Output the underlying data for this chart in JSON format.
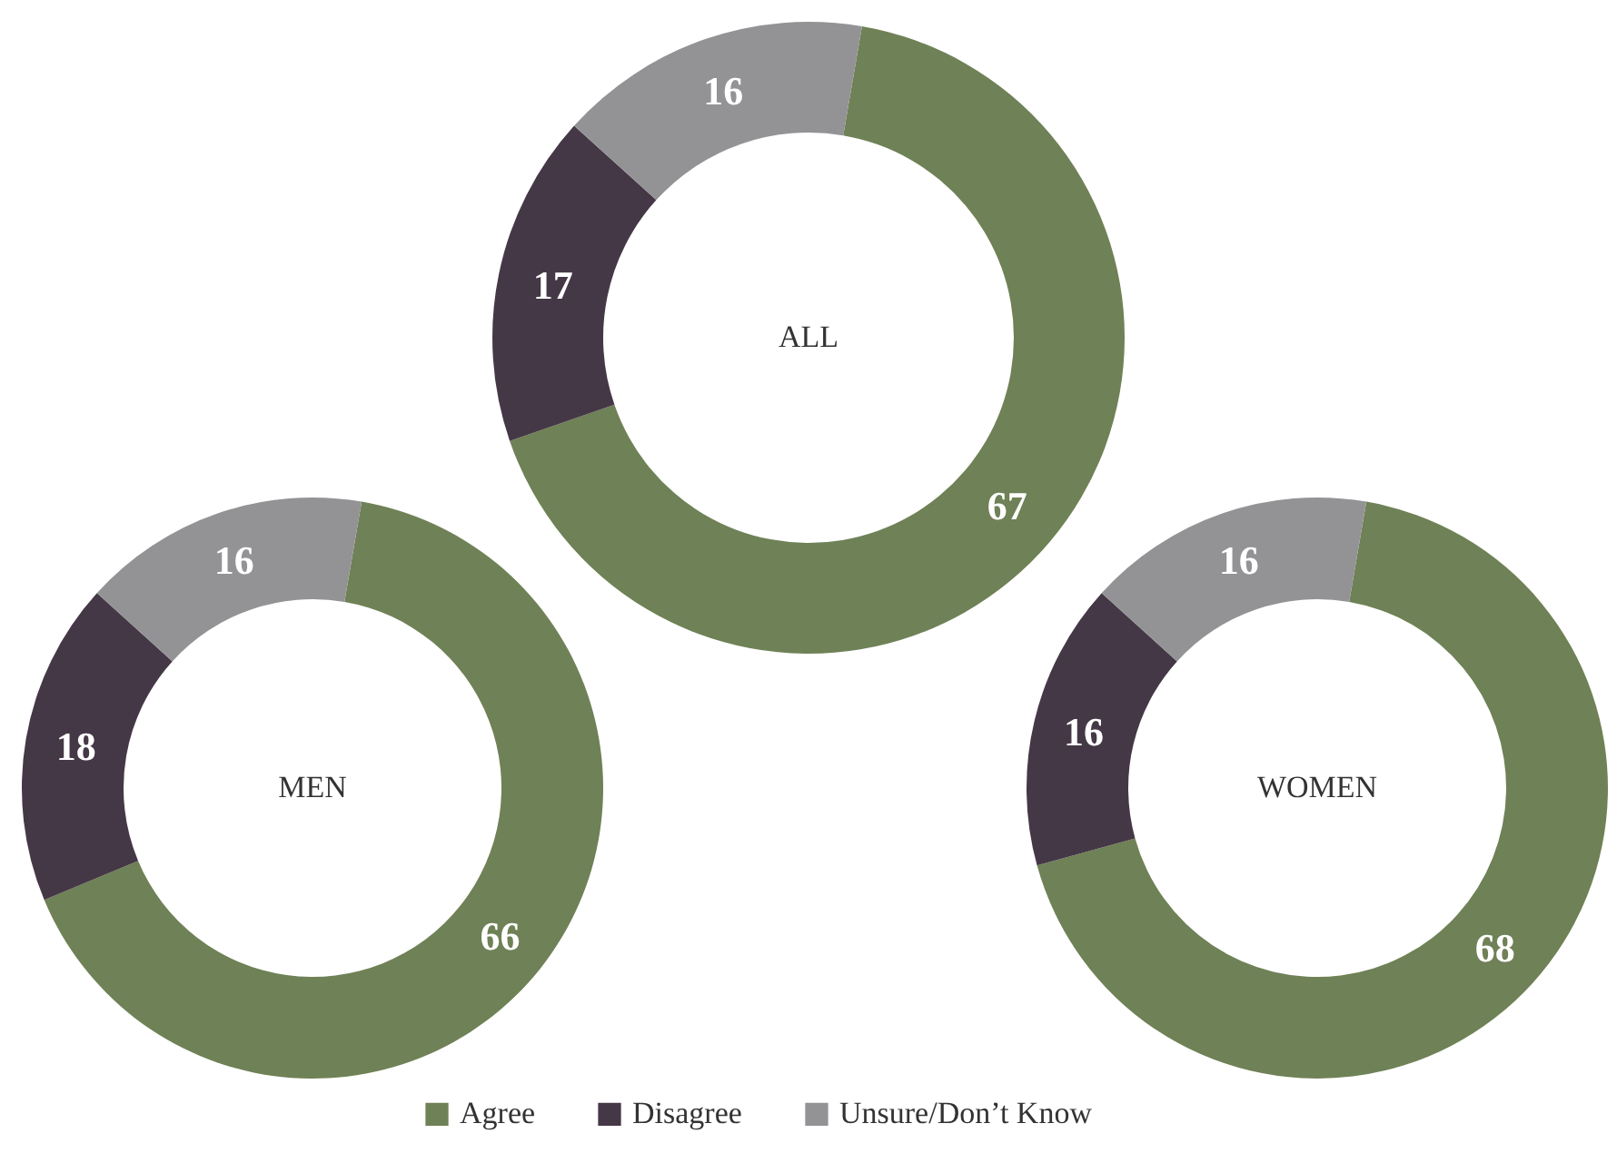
{
  "chart_data": [
    {
      "type": "donut",
      "title": "ALL",
      "categories": [
        "Agree",
        "Disagree",
        "Unsure/Don’t Know"
      ],
      "values": [
        67,
        17,
        16
      ],
      "colors": [
        "#6f8156",
        "#453846",
        "#939396"
      ],
      "data_labels": true,
      "legend": "bottom"
    },
    {
      "type": "donut",
      "title": "MEN",
      "categories": [
        null,
        null,
        null
      ],
      "values": [
        66,
        18,
        16
      ],
      "colors": [
        "#6f8156",
        "#453846",
        "#939396"
      ],
      "data_labels": true,
      "legend": false
    },
    {
      "type": "donut",
      "title": "WOMEN",
      "categories": [
        null,
        null,
        null
      ],
      "values": [
        68,
        16,
        16
      ],
      "colors": [
        "#6f8156",
        "#453846",
        "#939396"
      ],
      "data_labels": true,
      "legend": false
    }
  ]
}
